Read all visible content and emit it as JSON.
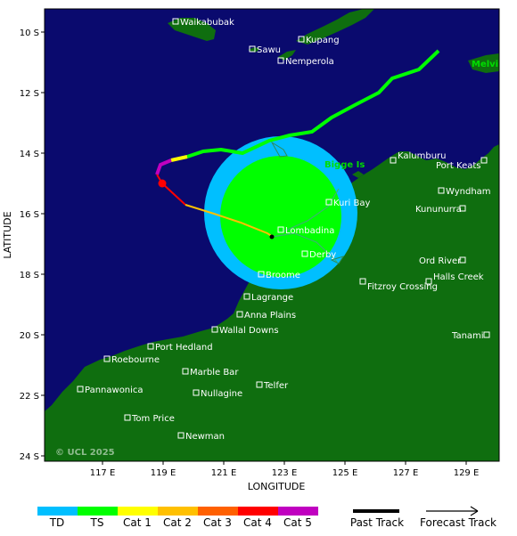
{
  "map": {
    "xlabel": "LONGITUDE",
    "ylabel": "LATITUDE",
    "x_ticks": [
      "117 E",
      "119 E",
      "121 E",
      "123 E",
      "125 E",
      "127 E",
      "129 E"
    ],
    "y_ticks": [
      "10 S",
      "12 S",
      "14 S",
      "16 S",
      "18 S",
      "20 S",
      "22 S",
      "24 S"
    ],
    "copyright": "© UCL 2025",
    "region_labels": [
      "Melvi",
      "Bigge Is"
    ],
    "colors": {
      "ocean": "#0a0a6e",
      "land": "#0f6e0f",
      "gale_radius": "#00bfff",
      "storm_radius": "#00ff00"
    }
  },
  "towns": [
    {
      "name": "Waikabubak"
    },
    {
      "name": "Kupang"
    },
    {
      "name": "Sawu"
    },
    {
      "name": "Nemperola"
    },
    {
      "name": "Kalumburu"
    },
    {
      "name": "Port Keats"
    },
    {
      "name": "Wyndham"
    },
    {
      "name": "Kuri Bay"
    },
    {
      "name": "Kununurra"
    },
    {
      "name": "Lombadina"
    },
    {
      "name": "Derby"
    },
    {
      "name": "Ord River"
    },
    {
      "name": "Broome"
    },
    {
      "name": "Halls Creek"
    },
    {
      "name": "Fitzroy Crossing"
    },
    {
      "name": "Lagrange"
    },
    {
      "name": "Anna Plains"
    },
    {
      "name": "Wallal Downs"
    },
    {
      "name": "Tanami"
    },
    {
      "name": "Port Hedland"
    },
    {
      "name": "Roebourne"
    },
    {
      "name": "Marble Bar"
    },
    {
      "name": "Pannawonica"
    },
    {
      "name": "Nullagine"
    },
    {
      "name": "Telfer"
    },
    {
      "name": "Tom Price"
    },
    {
      "name": "Newman"
    }
  ],
  "legend": {
    "categories": [
      {
        "label": "TD",
        "color": "#00bfff"
      },
      {
        "label": "TS",
        "color": "#00ff00"
      },
      {
        "label": "Cat 1",
        "color": "#ffff00"
      },
      {
        "label": "Cat 2",
        "color": "#ffc000"
      },
      {
        "label": "Cat 3",
        "color": "#ff6000"
      },
      {
        "label": "Cat 4",
        "color": "#ff0000"
      },
      {
        "label": "Cat 5",
        "color": "#c000c0"
      }
    ],
    "past_track": "Past Track",
    "forecast_track": "Forecast Track"
  }
}
